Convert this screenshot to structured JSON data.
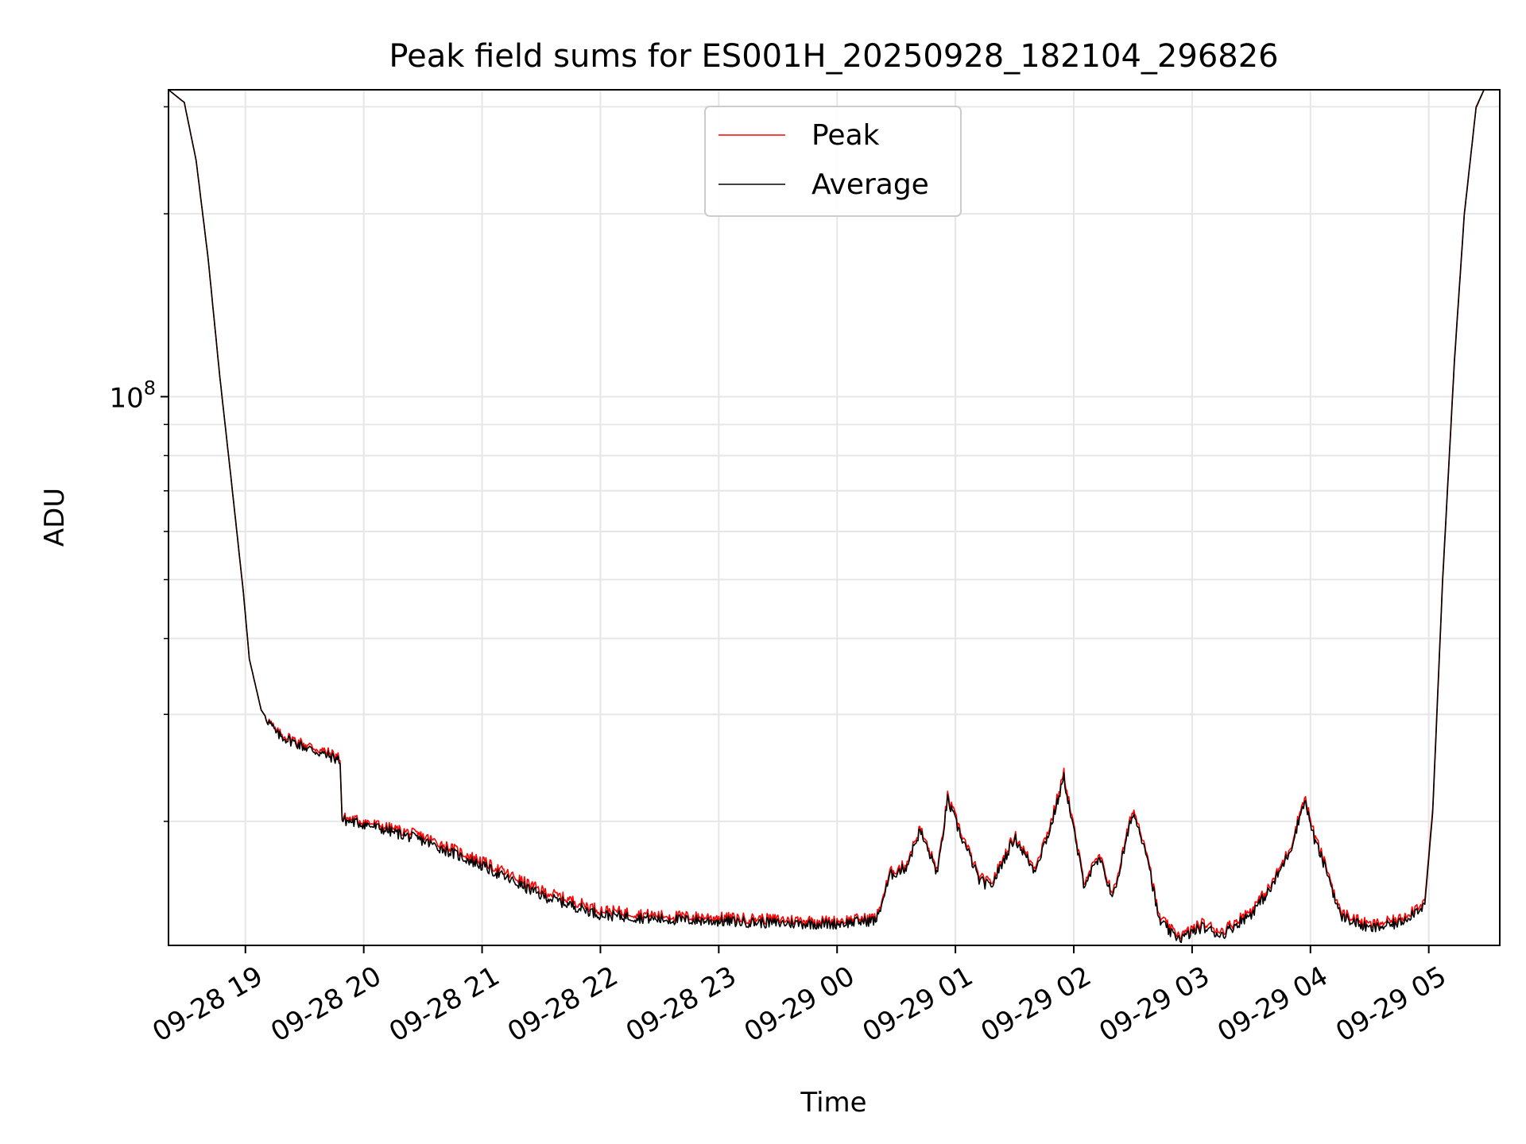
{
  "chart_data": {
    "type": "line",
    "title": "Peak field sums for ES001H_20250928_182104_296826",
    "xlabel": "Time",
    "ylabel": "ADU",
    "y_scale": "log",
    "y_tick_labels": [
      {
        "value": 100000000,
        "base": "10",
        "exp": "8"
      }
    ],
    "ylim": [
      12500000,
      320000000
    ],
    "xlim": [
      "2025-09-28 18:21",
      "2025-09-29 05:36"
    ],
    "x_tick_labels": [
      "09-28 19",
      "09-28 20",
      "09-28 21",
      "09-28 22",
      "09-28 23",
      "09-29 00",
      "09-29 01",
      "09-29 02",
      "09-29 03",
      "09-29 04",
      "09-29 05"
    ],
    "x_ticks": [
      "2025-09-28 19:00",
      "2025-09-28 20:00",
      "2025-09-28 21:00",
      "2025-09-28 22:00",
      "2025-09-28 23:00",
      "2025-09-29 00:00",
      "2025-09-29 01:00",
      "2025-09-29 02:00",
      "2025-09-29 03:00",
      "2025-09-29 04:00",
      "2025-09-29 05:00"
    ],
    "grid": true,
    "legend_position": "top-center",
    "series": [
      {
        "name": "Peak",
        "color": "#ff0000",
        "x": [
          "2025-09-28 18:21",
          "2025-09-28 18:29",
          "2025-09-28 18:35",
          "2025-09-28 18:41",
          "2025-09-28 18:47",
          "2025-09-28 18:53",
          "2025-09-28 18:59",
          "2025-09-28 19:02",
          "2025-09-28 19:08",
          "2025-09-28 19:16",
          "2025-09-28 19:30",
          "2025-09-28 19:48",
          "2025-09-28 19:49",
          "2025-09-28 20:00",
          "2025-09-28 20:30",
          "2025-09-28 21:00",
          "2025-09-28 21:30",
          "2025-09-28 22:00",
          "2025-09-28 22:30",
          "2025-09-28 23:00",
          "2025-09-28 23:30",
          "2025-09-28 23:57",
          "2025-09-29 00:20",
          "2025-09-29 00:27",
          "2025-09-29 00:35",
          "2025-09-29 00:42",
          "2025-09-29 00:51",
          "2025-09-29 00:56",
          "2025-09-29 01:02",
          "2025-09-29 01:08",
          "2025-09-29 01:12",
          "2025-09-29 01:18",
          "2025-09-29 01:30",
          "2025-09-29 01:40",
          "2025-09-29 01:48",
          "2025-09-29 01:55",
          "2025-09-29 02:05",
          "2025-09-29 02:13",
          "2025-09-29 02:20",
          "2025-09-29 02:30",
          "2025-09-29 02:37",
          "2025-09-29 02:43",
          "2025-09-29 02:50",
          "2025-09-29 02:55",
          "2025-09-29 03:05",
          "2025-09-29 03:15",
          "2025-09-29 03:30",
          "2025-09-29 03:40",
          "2025-09-29 03:50",
          "2025-09-29 03:57",
          "2025-09-29 04:02",
          "2025-09-29 04:09",
          "2025-09-29 04:15",
          "2025-09-29 04:30",
          "2025-09-29 04:45",
          "2025-09-29 04:58",
          "2025-09-29 05:02",
          "2025-09-29 05:07",
          "2025-09-29 05:13",
          "2025-09-29 05:18",
          "2025-09-29 05:24",
          "2025-09-29 05:28"
        ],
        "values": [
          320000000,
          305000000,
          245000000,
          170000000,
          108000000,
          72000000,
          47500000,
          37000000,
          30500000,
          28000000,
          26800000,
          25500000,
          20300000,
          20000000,
          18900000,
          17200000,
          15400000,
          14300000,
          14000000,
          13900000,
          13800000,
          13700000,
          13900000,
          16500000,
          17000000,
          19500000,
          16600000,
          22000000,
          19500000,
          17500000,
          16200000,
          15800000,
          19000000,
          16800000,
          19700000,
          24000000,
          16000000,
          17500000,
          15200000,
          21000000,
          18000000,
          14000000,
          13200000,
          13000000,
          13600000,
          13200000,
          14300000,
          15700000,
          18200000,
          22000000,
          19000000,
          16500000,
          14200000,
          13500000,
          13800000,
          14800000,
          21000000,
          50000000,
          115000000,
          200000000,
          300000000,
          320000000
        ]
      },
      {
        "name": "Average",
        "color": "#000000",
        "x": [
          "2025-09-28 18:21",
          "2025-09-28 18:29",
          "2025-09-28 18:35",
          "2025-09-28 18:41",
          "2025-09-28 18:47",
          "2025-09-28 18:53",
          "2025-09-28 18:59",
          "2025-09-28 19:02",
          "2025-09-28 19:08",
          "2025-09-28 19:16",
          "2025-09-28 19:30",
          "2025-09-28 19:48",
          "2025-09-28 19:49",
          "2025-09-28 20:00",
          "2025-09-28 20:30",
          "2025-09-28 21:00",
          "2025-09-28 21:30",
          "2025-09-28 22:00",
          "2025-09-28 22:30",
          "2025-09-28 23:00",
          "2025-09-28 23:30",
          "2025-09-28 23:57",
          "2025-09-29 00:20",
          "2025-09-29 00:27",
          "2025-09-29 00:35",
          "2025-09-29 00:42",
          "2025-09-29 00:51",
          "2025-09-29 00:56",
          "2025-09-29 01:02",
          "2025-09-29 01:08",
          "2025-09-29 01:12",
          "2025-09-29 01:18",
          "2025-09-29 01:30",
          "2025-09-29 01:40",
          "2025-09-29 01:48",
          "2025-09-29 01:55",
          "2025-09-29 02:05",
          "2025-09-29 02:13",
          "2025-09-29 02:20",
          "2025-09-29 02:30",
          "2025-09-29 02:37",
          "2025-09-29 02:43",
          "2025-09-29 02:50",
          "2025-09-29 02:55",
          "2025-09-29 03:05",
          "2025-09-29 03:15",
          "2025-09-29 03:30",
          "2025-09-29 03:40",
          "2025-09-29 03:50",
          "2025-09-29 03:57",
          "2025-09-29 04:02",
          "2025-09-29 04:09",
          "2025-09-29 04:15",
          "2025-09-29 04:30",
          "2025-09-29 04:45",
          "2025-09-29 04:58",
          "2025-09-29 05:02",
          "2025-09-29 05:07",
          "2025-09-29 05:13",
          "2025-09-29 05:18",
          "2025-09-29 05:24",
          "2025-09-29 05:28"
        ],
        "values": [
          320000000,
          305000000,
          245000000,
          170000000,
          108000000,
          72000000,
          47500000,
          37000000,
          30500000,
          27800000,
          26500000,
          25200000,
          20100000,
          19800000,
          18600000,
          16900000,
          15100000,
          14050000,
          13800000,
          13700000,
          13600000,
          13550000,
          13750000,
          16300000,
          16800000,
          19300000,
          16400000,
          21700000,
          19200000,
          17300000,
          16000000,
          15600000,
          18800000,
          16600000,
          19400000,
          23600000,
          15800000,
          17300000,
          15000000,
          20700000,
          17800000,
          13800000,
          13000000,
          12850000,
          13400000,
          13000000,
          14100000,
          15500000,
          18000000,
          21700000,
          18700000,
          16300000,
          14000000,
          13300000,
          13600000,
          14600000,
          20700000,
          49500000,
          114000000,
          199000000,
          299000000,
          320000000
        ]
      }
    ]
  }
}
